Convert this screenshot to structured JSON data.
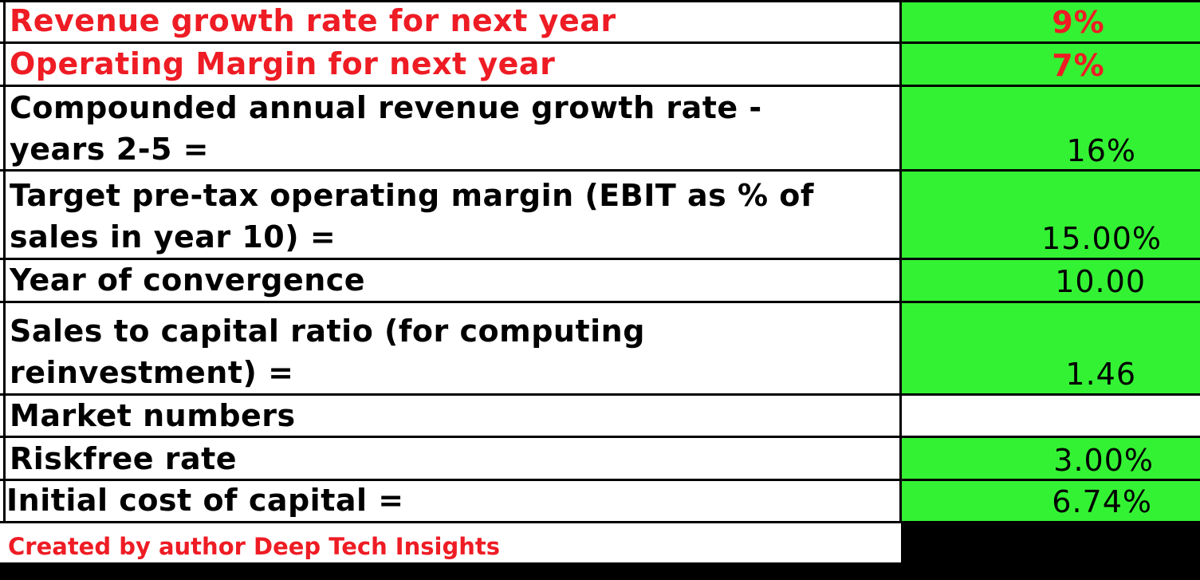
{
  "rows": [
    {
      "label": "Revenue growth rate for next year",
      "value": "9%"
    },
    {
      "label": "Operating Margin for next year",
      "value": "7%"
    },
    {
      "label": "Compounded annual revenue growth rate -\nyears 2-5 =",
      "value": "16%"
    },
    {
      "label": "Target pre-tax operating margin (EBIT as % of\nsales in year 10) =",
      "value": "15.00%"
    },
    {
      "label": "Year of convergence",
      "value": "10.00"
    },
    {
      "label": "Sales to capital ratio  (for computing\nreinvestment) =",
      "value": "1.46"
    },
    {
      "label": "Market numbers",
      "value": ""
    },
    {
      "label": "Riskfree rate",
      "value": "3.00%"
    },
    {
      "label": "Initial cost of capital =",
      "value": "6.74%"
    }
  ],
  "footer": "Created by author Deep Tech Insights",
  "colors": {
    "highlight_green": "#33f233",
    "accent_red": "#ee1c24",
    "border": "#000000"
  }
}
